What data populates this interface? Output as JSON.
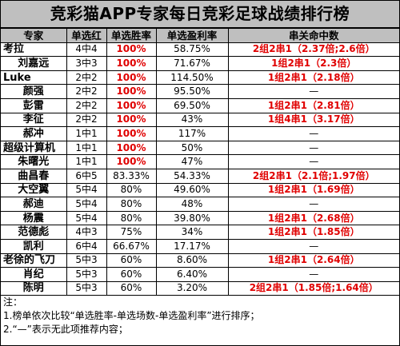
{
  "title": "竞彩猫APP专家每日竞彩足球战绩排行榜",
  "headers": [
    "专家",
    "单选红",
    "单选胜率",
    "单选盈利率",
    "串关命中数"
  ],
  "rows": [
    {
      "name": "考拉",
      "red": "4中4",
      "rate": "100%",
      "profit": "58.75%",
      "combo": "2组2串1（2.37倍;2.6倍）"
    },
    {
      "name": "刘嘉远",
      "red": "3中3",
      "rate": "100%",
      "profit": "71.67%",
      "combo": "1组2串1（2.3倍）"
    },
    {
      "name": "Luke",
      "red": "2中2",
      "rate": "100%",
      "profit": "114.50%",
      "combo": "1组2串1（2.18倍）"
    },
    {
      "name": "颜强",
      "red": "2中2",
      "rate": "100%",
      "profit": "95.50%",
      "combo": "—"
    },
    {
      "name": "彭雷",
      "red": "2中2",
      "rate": "100%",
      "profit": "69.50%",
      "combo": "1组2串1（2.81倍）"
    },
    {
      "name": "李征",
      "red": "2中2",
      "rate": "100%",
      "profit": "43%",
      "combo": "1组4串1（3.17倍）"
    },
    {
      "name": "郝冲",
      "red": "1中1",
      "rate": "100%",
      "profit": "117%",
      "combo": "—"
    },
    {
      "name": "超级计算机",
      "red": "1中1",
      "rate": "100%",
      "profit": "50%",
      "combo": "—"
    },
    {
      "name": "朱曙光",
      "red": "1中1",
      "rate": "100%",
      "profit": "47%",
      "combo": "—"
    },
    {
      "name": "曲昌春",
      "red": "6中5",
      "rate": "83.33%",
      "profit": "54.33%",
      "combo": "2组2串1（2.1倍;1.97倍）"
    },
    {
      "name": "大空翼",
      "red": "5中4",
      "rate": "80%",
      "profit": "49.60%",
      "combo": "1组2串1（1.69倍）"
    },
    {
      "name": "郝迪",
      "red": "5中4",
      "rate": "80%",
      "profit": "48%",
      "combo": "—"
    },
    {
      "name": "杨震",
      "red": "5中4",
      "rate": "80%",
      "profit": "39.80%",
      "combo": "1组2串1（2.68倍）"
    },
    {
      "name": "范德彪",
      "red": "4中3",
      "rate": "75%",
      "profit": "34%",
      "combo": "1组2串1（1.85倍）"
    },
    {
      "name": "凯利",
      "red": "6中4",
      "rate": "66.67%",
      "profit": "17.17%",
      "combo": "—"
    },
    {
      "name": "老徐的飞刀",
      "red": "5中3",
      "rate": "60%",
      "profit": "8.60%",
      "combo": "1组2串1（2.64倍）"
    },
    {
      "name": "肖纪",
      "red": "5中3",
      "rate": "60%",
      "profit": "6.40%",
      "combo": "—"
    },
    {
      "name": "陈明",
      "red": "5中3",
      "rate": "60%",
      "profit": "3.20%",
      "combo": "2组2串1（1.85倍;1.64倍）"
    }
  ],
  "notes": {
    "label": "注：",
    "line1": "1.榜单依次比较“单选胜率-单选场数-单选盈利率”进行排序；",
    "line2": "2.“—”表示无此项推荐内容；"
  }
}
